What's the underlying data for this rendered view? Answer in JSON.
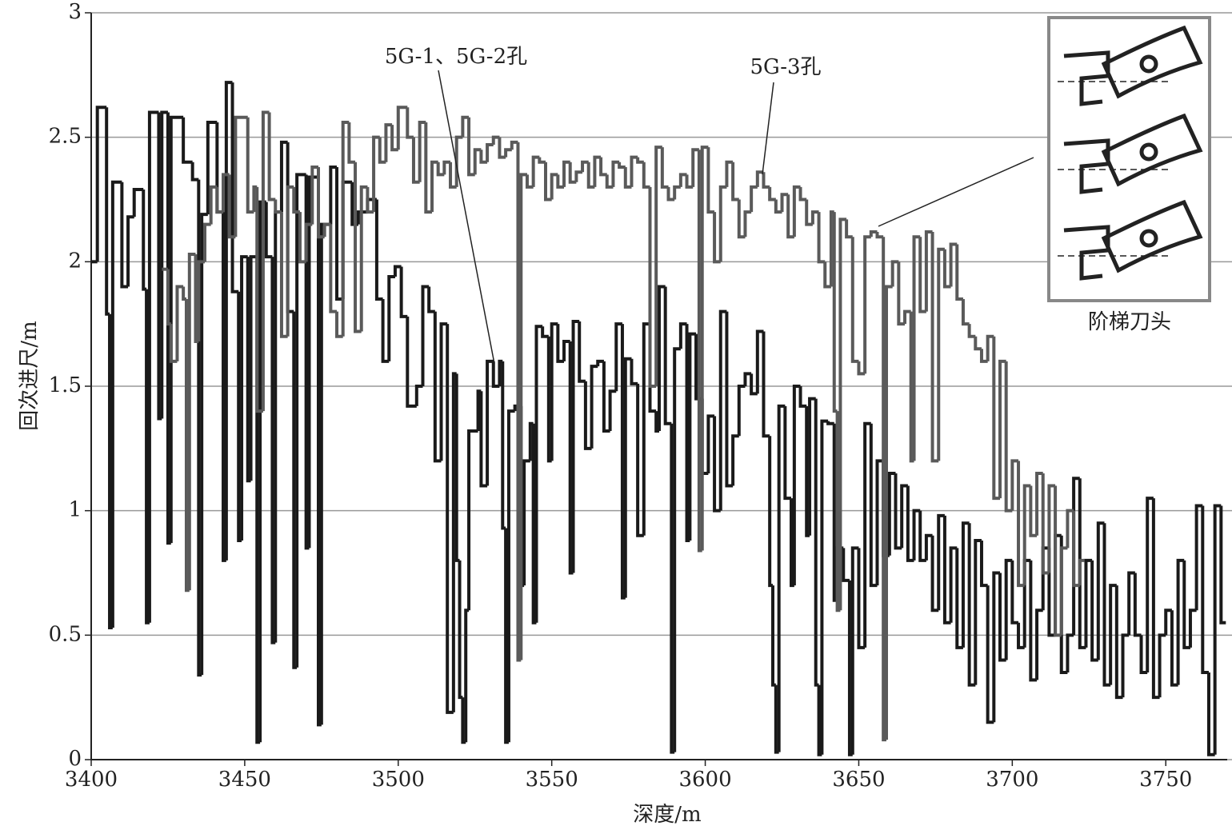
{
  "chart_data": {
    "type": "line",
    "step": true,
    "xlabel": "深度/m",
    "ylabel": "回次进尺/m",
    "xlim": [
      3400,
      3770
    ],
    "xticks": [
      3400,
      3450,
      3500,
      3550,
      3600,
      3650,
      3700,
      3750
    ],
    "ylim": [
      0,
      3
    ],
    "yticks": [
      0,
      0.5,
      1,
      1.5,
      2,
      2.5,
      3
    ],
    "grid": true,
    "inset_label": "阶梯刀头",
    "series": [
      {
        "name": "5G-1、5G-2孔",
        "color": "#1a1a1a",
        "x": [
          3400,
          3402,
          3405,
          3406,
          3407,
          3410,
          3412,
          3414,
          3417,
          3418,
          3419,
          3422,
          3423,
          3425,
          3426,
          3430,
          3433,
          3435,
          3436,
          3438,
          3441,
          3443,
          3444,
          3446,
          3448,
          3449,
          3451,
          3452,
          3454,
          3455,
          3457,
          3459,
          3460,
          3462,
          3464,
          3466,
          3467,
          3470,
          3471,
          3474,
          3475,
          3478,
          3480,
          3482,
          3485,
          3487,
          3490,
          3493,
          3495,
          3497,
          3499,
          3501,
          3503,
          3506,
          3508,
          3510,
          3512,
          3514,
          3516,
          3518,
          3519,
          3520,
          3521,
          3522,
          3523,
          3526,
          3527,
          3529,
          3531,
          3533,
          3534,
          3535,
          3536,
          3538,
          3540,
          3541,
          3543,
          3544,
          3545,
          3547,
          3549,
          3550,
          3552,
          3554,
          3556,
          3557,
          3559,
          3561,
          3563,
          3565,
          3567,
          3569,
          3571,
          3573,
          3574,
          3576,
          3578,
          3580,
          3582,
          3584,
          3585,
          3587,
          3589,
          3590,
          3592,
          3594,
          3595,
          3597,
          3599,
          3601,
          3603,
          3605,
          3607,
          3609,
          3611,
          3613,
          3615,
          3617,
          3619,
          3621,
          3622,
          3623,
          3624,
          3626,
          3628,
          3629,
          3631,
          3633,
          3634,
          3636,
          3637,
          3638,
          3640,
          3642,
          3643,
          3645,
          3647,
          3648,
          3650,
          3652,
          3654,
          3656,
          3658,
          3660,
          3662,
          3664,
          3666,
          3668,
          3670,
          3672,
          3674,
          3676,
          3678,
          3680,
          3682,
          3684,
          3686,
          3688,
          3690,
          3692,
          3694,
          3696,
          3698,
          3700,
          3702,
          3704,
          3706,
          3708,
          3710,
          3712,
          3714,
          3716,
          3718,
          3720,
          3722,
          3724,
          3726,
          3728,
          3730,
          3732,
          3734,
          3736,
          3738,
          3740,
          3742,
          3744,
          3746,
          3748,
          3750,
          3752,
          3754,
          3756,
          3758,
          3760,
          3762,
          3764,
          3766,
          3768
        ],
        "values": [
          2.0,
          2.62,
          1.79,
          0.53,
          2.32,
          1.9,
          2.18,
          2.29,
          1.89,
          0.55,
          2.6,
          1.37,
          2.6,
          0.87,
          2.58,
          2.4,
          2.33,
          0.34,
          2.19,
          2.56,
          2.2,
          0.8,
          2.72,
          1.88,
          0.88,
          2.02,
          1.12,
          2.02,
          0.07,
          2.24,
          2.02,
          0.47,
          2.2,
          2.48,
          1.8,
          0.37,
          2.35,
          0.85,
          2.34,
          0.14,
          2.15,
          2.38,
          1.85,
          2.32,
          2.15,
          2.2,
          2.25,
          1.85,
          1.6,
          1.94,
          1.98,
          1.78,
          1.42,
          1.5,
          1.9,
          1.8,
          1.2,
          1.75,
          0.19,
          1.55,
          0.8,
          0.25,
          0.07,
          0.6,
          1.32,
          1.48,
          1.1,
          1.6,
          1.5,
          1.6,
          0.93,
          0.07,
          1.4,
          1.42,
          0.7,
          1.2,
          1.35,
          0.55,
          1.74,
          1.7,
          1.2,
          1.75,
          1.6,
          1.68,
          0.75,
          1.76,
          1.52,
          1.25,
          1.58,
          1.6,
          1.32,
          1.48,
          1.75,
          0.65,
          1.61,
          1.51,
          0.9,
          1.75,
          1.4,
          1.32,
          1.9,
          1.35,
          0.03,
          1.65,
          1.75,
          0.88,
          1.71,
          1.45,
          1.15,
          1.38,
          1.0,
          1.8,
          1.1,
          1.3,
          1.5,
          1.55,
          1.47,
          1.72,
          1.3,
          0.7,
          0.3,
          0.03,
          1.42,
          1.05,
          0.7,
          1.5,
          1.42,
          0.9,
          1.45,
          0.3,
          0.02,
          1.36,
          1.35,
          0.64,
          0.85,
          0.72,
          0.02,
          0.85,
          0.45,
          1.35,
          0.7,
          1.2,
          0.82,
          1.15,
          0.85,
          1.1,
          0.8,
          1.0,
          0.8,
          0.9,
          0.6,
          0.98,
          0.55,
          0.85,
          0.45,
          0.95,
          0.3,
          0.88,
          0.7,
          0.15,
          0.75,
          0.4,
          0.8,
          0.55,
          0.45,
          0.8,
          0.32,
          0.6,
          0.85,
          0.5,
          0.9,
          0.35,
          0.5,
          1.13,
          0.45,
          0.8,
          0.4,
          0.95,
          0.3,
          0.7,
          0.25,
          0.5,
          0.75,
          0.5,
          0.35,
          1.05,
          0.25,
          0.5,
          0.6,
          0.3,
          0.8,
          0.45,
          0.6,
          1.02,
          0.35,
          0.02,
          1.02,
          0.55
        ]
      },
      {
        "name": "5G-3孔",
        "color": "#5a5a5a",
        "x": [
          3423,
          3425,
          3426,
          3428,
          3430,
          3431,
          3432,
          3434,
          3435,
          3437,
          3439,
          3441,
          3443,
          3445,
          3447,
          3451,
          3453,
          3454,
          3456,
          3458,
          3460,
          3462,
          3464,
          3466,
          3468,
          3470,
          3472,
          3474,
          3476,
          3478,
          3480,
          3482,
          3484,
          3486,
          3488,
          3490,
          3492,
          3494,
          3496,
          3498,
          3500,
          3503,
          3505,
          3507,
          3509,
          3511,
          3513,
          3515,
          3517,
          3519,
          3521,
          3523,
          3525,
          3527,
          3529,
          3531,
          3533,
          3535,
          3537,
          3539,
          3540,
          3542,
          3544,
          3546,
          3548,
          3550,
          3552,
          3554,
          3556,
          3558,
          3560,
          3562,
          3564,
          3566,
          3568,
          3570,
          3572,
          3574,
          3576,
          3578,
          3580,
          3582,
          3584,
          3586,
          3588,
          3590,
          3592,
          3594,
          3596,
          3598,
          3599,
          3601,
          3603,
          3605,
          3607,
          3609,
          3611,
          3613,
          3615,
          3617,
          3619,
          3621,
          3623,
          3625,
          3627,
          3629,
          3631,
          3633,
          3635,
          3637,
          3639,
          3641,
          3642,
          3643,
          3644,
          3646,
          3648,
          3650,
          3652,
          3654,
          3656,
          3658,
          3659,
          3661,
          3663,
          3665,
          3667,
          3668,
          3670,
          3672,
          3674,
          3676,
          3678,
          3680,
          3682,
          3684,
          3686,
          3688,
          3690,
          3692,
          3694,
          3696,
          3698,
          3700,
          3702,
          3704,
          3706,
          3708,
          3710,
          3712,
          3714,
          3716,
          3718,
          3720,
          3722
        ],
        "values": [
          1.97,
          1.75,
          1.6,
          1.9,
          1.85,
          0.68,
          2.03,
          1.68,
          2.0,
          2.15,
          2.3,
          2.2,
          2.35,
          2.1,
          2.58,
          2.2,
          2.3,
          1.4,
          2.6,
          2.25,
          2.2,
          1.7,
          2.3,
          2.2,
          2.0,
          2.15,
          2.38,
          2.1,
          2.15,
          1.8,
          1.7,
          2.56,
          2.4,
          1.72,
          2.3,
          2.2,
          2.5,
          2.4,
          2.55,
          2.45,
          2.62,
          2.5,
          2.32,
          2.56,
          2.2,
          2.4,
          2.35,
          2.4,
          2.3,
          2.5,
          2.58,
          2.35,
          2.45,
          2.4,
          2.47,
          2.5,
          2.42,
          2.45,
          2.48,
          0.4,
          2.35,
          2.3,
          2.42,
          2.4,
          2.25,
          2.35,
          2.3,
          2.4,
          2.32,
          2.36,
          2.4,
          2.3,
          2.42,
          2.35,
          2.3,
          2.4,
          2.38,
          2.3,
          2.42,
          2.4,
          2.3,
          1.5,
          2.46,
          2.3,
          2.25,
          2.3,
          2.35,
          2.3,
          2.45,
          0.84,
          2.46,
          2.2,
          2.0,
          2.3,
          2.4,
          2.25,
          2.1,
          2.2,
          2.3,
          2.36,
          2.3,
          2.25,
          2.2,
          2.27,
          2.1,
          2.3,
          2.25,
          2.15,
          2.2,
          2.0,
          1.9,
          2.2,
          1.4,
          0.6,
          2.17,
          2.1,
          1.6,
          1.55,
          2.1,
          2.12,
          2.1,
          0.08,
          1.9,
          2.0,
          1.75,
          1.8,
          1.2,
          2.1,
          1.8,
          2.12,
          1.2,
          2.05,
          1.9,
          2.07,
          1.85,
          1.75,
          1.7,
          1.65,
          1.6,
          1.7,
          1.05,
          1.6,
          1.0,
          1.2,
          0.7,
          1.1,
          0.9,
          1.15,
          0.75,
          1.1,
          0.5,
          0.85,
          1.0,
          0.7,
          0.8
        ]
      }
    ]
  }
}
